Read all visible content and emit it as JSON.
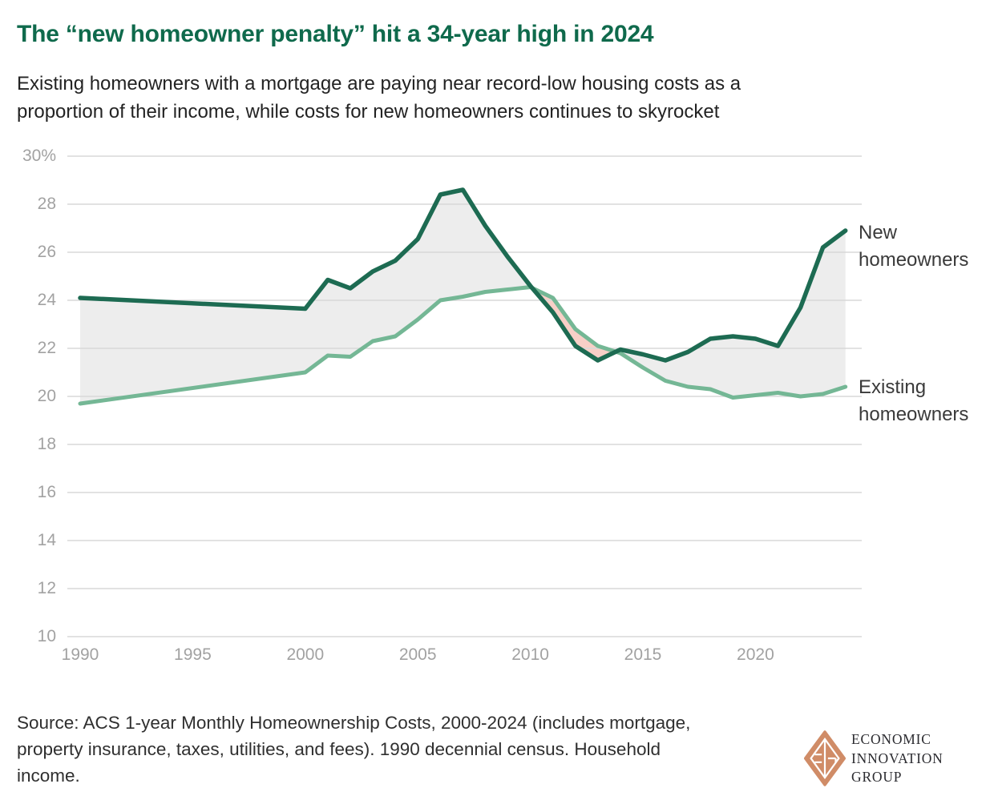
{
  "header": {
    "title": "The “new homeowner penalty” hit a 34-year high in 2024",
    "subtitle_lines": [
      "Existing homeowners with a mortgage are paying near record-low housing costs as a",
      "proportion of their income, while costs for new homeowners continues to skyrocket"
    ]
  },
  "chart_data": {
    "type": "line",
    "x": [
      1990,
      2000,
      2001,
      2002,
      2003,
      2004,
      2005,
      2006,
      2007,
      2008,
      2009,
      2010,
      2011,
      2012,
      2013,
      2014,
      2015,
      2016,
      2017,
      2018,
      2019,
      2020,
      2021,
      2022,
      2023,
      2024
    ],
    "series": [
      {
        "name": "New homeowners",
        "color": "#1d6b52",
        "values": [
          24.1,
          23.65,
          24.85,
          24.5,
          25.2,
          25.65,
          26.55,
          28.4,
          28.6,
          27.1,
          25.8,
          24.6,
          23.5,
          22.1,
          21.5,
          21.95,
          21.75,
          21.5,
          21.85,
          22.4,
          22.5,
          22.4,
          22.1,
          23.7,
          26.2,
          26.9
        ]
      },
      {
        "name": "Existing homeowners",
        "color": "#74b795",
        "values": [
          19.7,
          21.0,
          21.7,
          21.65,
          22.3,
          22.5,
          23.2,
          24.0,
          24.15,
          24.35,
          24.45,
          24.55,
          24.1,
          22.8,
          22.1,
          21.8,
          21.2,
          20.65,
          20.4,
          20.3,
          19.95,
          20.05,
          20.15,
          20.0,
          20.1,
          20.4
        ]
      }
    ],
    "ylim": [
      10,
      30
    ],
    "xlim": [
      1990,
      2024
    ],
    "yticks": {
      "values": [
        30,
        28,
        26,
        24,
        22,
        20,
        18,
        16,
        14,
        12,
        10
      ],
      "labels": [
        "30%",
        "28",
        "26",
        "24",
        "22",
        "20",
        "18",
        "16",
        "14",
        "12",
        "10"
      ]
    },
    "xticks": {
      "values": [
        1990,
        1995,
        2000,
        2005,
        2010,
        2015,
        2020
      ],
      "labels": [
        "1990",
        "1995",
        "2000",
        "2005",
        "2010",
        "2015",
        "2020"
      ]
    },
    "grid": true,
    "grid_color": "#d8d8d8",
    "fills": {
      "new_above_color": "#ededed",
      "existing_above_color": "#f8cfc7"
    },
    "legend_position": "right-edge-annotations"
  },
  "annotations": {
    "new": "New homeowners",
    "existing": "Existing homeowners"
  },
  "source": {
    "lines": [
      "Source: ACS 1-year Monthly Homeownership Costs, 2000-2024 (includes mortgage,",
      "property insurance, taxes, utilities, and fees). 1990 decennial census. Household",
      "income."
    ]
  },
  "logo": {
    "diamond_color": "#d08c67",
    "lines": [
      "ECONOMIC",
      "INNOVATION",
      "GROUP"
    ]
  }
}
